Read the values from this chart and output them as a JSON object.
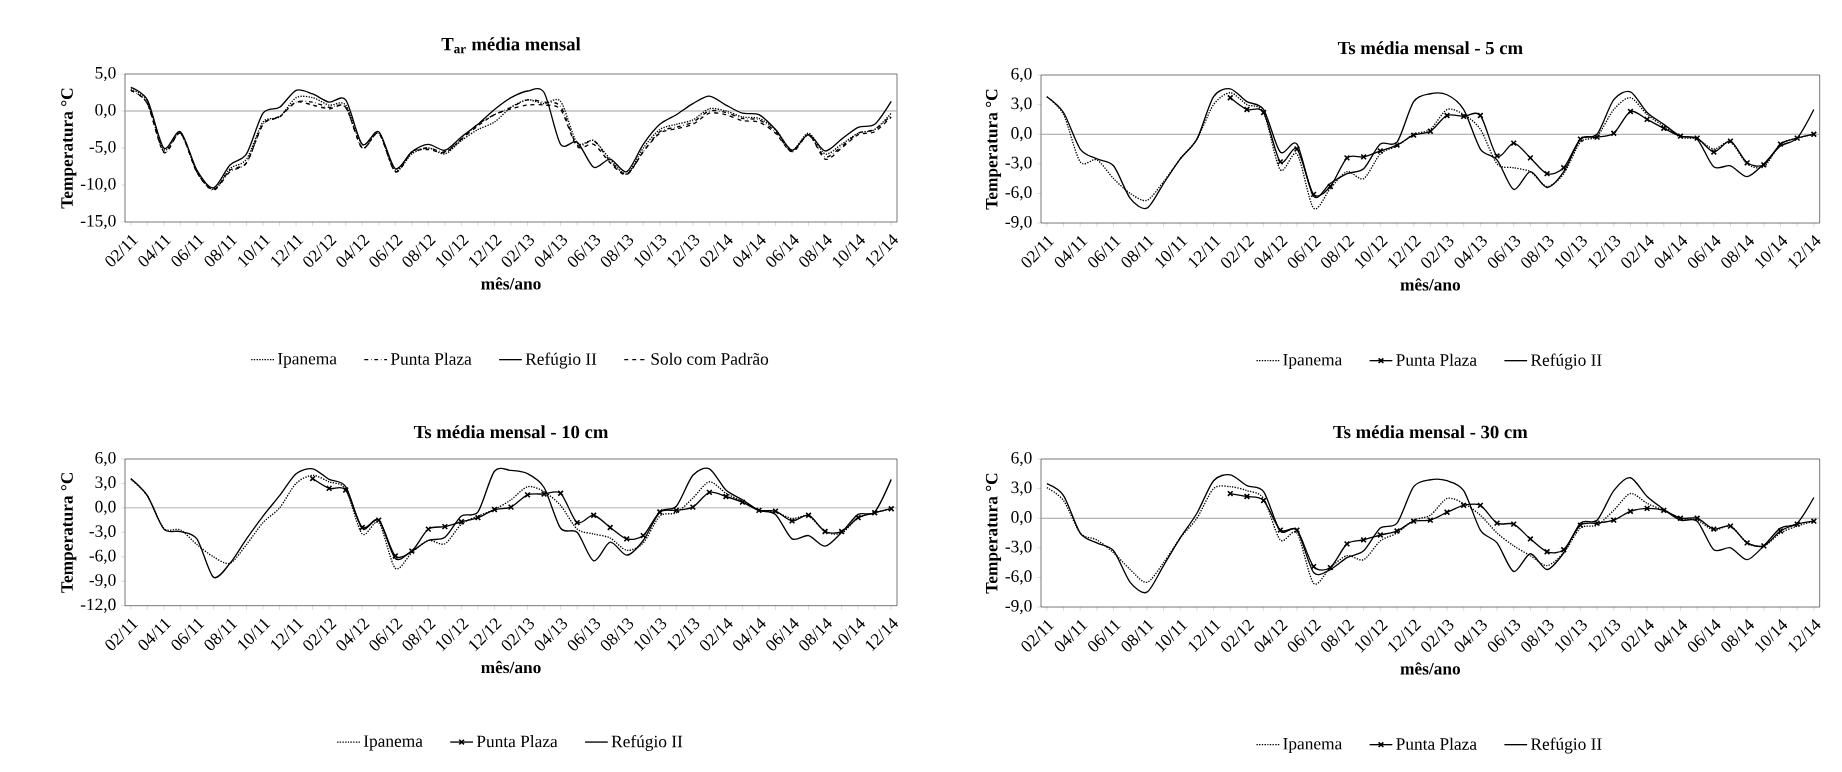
{
  "chart_data": [
    {
      "type": "line",
      "title": "T$_{ar}$ média mensal",
      "xlabel": "mês/ano",
      "ylabel": "Temperatura °C",
      "legend": "bottom",
      "categories": [
        "02/11",
        null,
        "04/11",
        null,
        "06/11",
        null,
        "08/11",
        null,
        "10/11",
        null,
        "12/11",
        null,
        "02/12",
        null,
        "04/12",
        null,
        "06/12",
        null,
        "08/12",
        null,
        "10/12",
        null,
        "12/12",
        null,
        "02/13",
        null,
        "04/13",
        null,
        "06/13",
        null,
        "08/13",
        null,
        "10/13",
        null,
        "12/13",
        null,
        "02/14",
        null,
        "04/14",
        null,
        "06/14",
        null,
        "08/14",
        null,
        "10/14",
        null,
        "12/14"
      ],
      "ylim": [
        -15,
        5
      ],
      "yticks": [
        {
          "value": -15,
          "label": "-15,0"
        },
        {
          "value": -10,
          "label": "-10,0"
        },
        {
          "value": -5,
          "label": "-5,0"
        },
        {
          "value": 0,
          "label": "0,0"
        },
        {
          "value": 5,
          "label": "5,0"
        }
      ],
      "ref_lines": [
        {
          "axis": "y",
          "value": 0,
          "color": "#a0a0a0"
        }
      ],
      "series": [
        {
          "name": "Ipanema",
          "color": "#000000",
          "line_style": "dotted",
          "values": [
            3.0,
            1.3,
            -5.2,
            -3.0,
            -8.2,
            -10.6,
            -7.8,
            -6.5,
            -1.5,
            -0.8,
            1.8,
            1.8,
            0.8,
            0.8,
            -4.5,
            -3.0,
            -8.0,
            -5.8,
            -5.0,
            -5.8,
            -4.0,
            -2.5,
            -1.5,
            0.5,
            1.5,
            1.0,
            1.3,
            -4.3,
            -4.0,
            -6.5,
            -8.5,
            -5.0,
            -2.5,
            -1.8,
            -1.2,
            0.3,
            0.0,
            -0.8,
            -1.0,
            -2.5,
            -5.3,
            -3.0,
            -5.8,
            -4.5,
            -3.0,
            -2.5,
            -0.3
          ]
        },
        {
          "name": "Punta Plaza",
          "color": "#000000",
          "line_style": "dashdot",
          "values": [
            2.8,
            1.0,
            -5.5,
            -3.0,
            -8.2,
            -10.7,
            -8.2,
            -7.0,
            -1.8,
            -0.7,
            1.2,
            1.2,
            0.5,
            0.5,
            -5.0,
            -3.0,
            -8.2,
            -5.5,
            -5.0,
            -5.5,
            -3.8,
            -1.8,
            -0.5,
            0.5,
            1.5,
            1.2,
            0.6,
            -4.6,
            -4.0,
            -6.8,
            -8.5,
            -5.5,
            -2.8,
            -2.2,
            -1.5,
            0.0,
            -0.2,
            -1.0,
            -1.2,
            -2.8,
            -5.5,
            -3.3,
            -6.2,
            -4.8,
            -3.0,
            -2.5,
            -0.6
          ]
        },
        {
          "name": "Refúgio II",
          "color": "#000000",
          "line_style": "solid",
          "values": [
            3.2,
            1.5,
            -5.0,
            -2.8,
            -8.0,
            -10.4,
            -7.3,
            -5.8,
            -0.3,
            0.5,
            2.8,
            2.3,
            1.2,
            1.5,
            -4.5,
            -2.8,
            -7.8,
            -5.5,
            -4.5,
            -5.3,
            -3.5,
            -1.8,
            0.2,
            1.8,
            2.7,
            2.5,
            -4.5,
            -4.2,
            -7.6,
            -6.5,
            -8.2,
            -4.5,
            -1.8,
            -0.5,
            1.0,
            2.0,
            0.8,
            -0.3,
            -0.5,
            -2.5,
            -5.3,
            -3.2,
            -5.4,
            -3.8,
            -2.2,
            -1.8,
            1.3
          ]
        },
        {
          "name": "Solo com Padrão",
          "color": "#000000",
          "line_style": "dashed",
          "values": [
            2.8,
            1.0,
            -5.6,
            -3.0,
            -8.3,
            -10.6,
            -8.0,
            -7.0,
            -1.8,
            -0.8,
            1.2,
            0.8,
            0.3,
            0.5,
            -5.0,
            -3.0,
            -8.2,
            -5.6,
            -5.2,
            -5.6,
            -3.8,
            -2.0,
            -0.5,
            0.3,
            0.8,
            0.8,
            0.2,
            -4.8,
            -4.5,
            -7.0,
            -8.6,
            -5.5,
            -3.0,
            -2.4,
            -1.8,
            -0.3,
            -0.5,
            -1.3,
            -1.5,
            -3.0,
            -5.5,
            -3.2,
            -6.5,
            -5.0,
            -3.2,
            -2.8,
            -0.8
          ]
        }
      ]
    },
    {
      "type": "line",
      "title": "Ts média mensal - 5 cm",
      "xlabel": "mês/ano",
      "ylabel": "Temperatura °C",
      "legend": "bottom",
      "categories": [
        "02/11",
        null,
        "04/11",
        null,
        "06/11",
        null,
        "08/11",
        null,
        "10/11",
        null,
        "12/11",
        null,
        "02/12",
        null,
        "04/12",
        null,
        "06/12",
        null,
        "08/12",
        null,
        "10/12",
        null,
        "12/12",
        null,
        "02/13",
        null,
        "04/13",
        null,
        "06/13",
        null,
        "08/13",
        null,
        "10/13",
        null,
        "12/13",
        null,
        "02/14",
        null,
        "04/14",
        null,
        "06/14",
        null,
        "08/14",
        null,
        "10/14",
        null,
        "12/14"
      ],
      "ylim": [
        -9,
        6
      ],
      "yticks": [
        {
          "value": -9,
          "label": "-9,0"
        },
        {
          "value": -6,
          "label": "-6,0"
        },
        {
          "value": -3,
          "label": "-3,0"
        },
        {
          "value": 0,
          "label": "0,0"
        },
        {
          "value": 3,
          "label": "3,0"
        },
        {
          "value": 6,
          "label": "6,0"
        }
      ],
      "ref_lines": [
        {
          "axis": "y",
          "value": 0,
          "color": "#a0a0a0"
        }
      ],
      "series": [
        {
          "name": "Ipanema",
          "color": "#000000",
          "line_style": "dotted",
          "values": [
            3.8,
            2.0,
            -2.8,
            -2.6,
            -4.5,
            -6.0,
            -6.7,
            -4.8,
            -2.5,
            -0.5,
            3.0,
            4.2,
            3.0,
            2.2,
            -3.6,
            -2.0,
            -7.5,
            -5.5,
            -3.8,
            -4.5,
            -2.0,
            -1.2,
            0.0,
            0.5,
            2.5,
            2.0,
            0.5,
            -3.0,
            -3.4,
            -3.8,
            -5.3,
            -4.0,
            -0.8,
            -0.2,
            2.5,
            3.7,
            2.0,
            0.8,
            -0.3,
            -0.5,
            -1.5,
            -0.8,
            -3.0,
            -3.3,
            -1.0,
            -0.4,
            0.0
          ]
        },
        {
          "name": "Punta Plaza",
          "color": "#000000",
          "line_style": "solid",
          "marker": "cross",
          "values": [
            null,
            null,
            null,
            null,
            null,
            null,
            null,
            null,
            null,
            null,
            null,
            3.7,
            2.5,
            2.2,
            -2.8,
            -1.5,
            -6.1,
            -5.3,
            -2.4,
            -2.3,
            -1.7,
            -1.1,
            -0.1,
            0.3,
            1.9,
            1.8,
            1.9,
            -2.2,
            -0.9,
            -2.4,
            -4.0,
            -3.4,
            -0.5,
            -0.3,
            0.1,
            2.3,
            1.5,
            0.6,
            -0.2,
            -0.4,
            -1.8,
            -0.7,
            -2.9,
            -3.1,
            -1.0,
            -0.4,
            0.0
          ]
        },
        {
          "name": "Refúgio II",
          "color": "#000000",
          "line_style": "solid",
          "values": [
            3.8,
            2.2,
            -1.5,
            -2.5,
            -3.2,
            -6.5,
            -7.5,
            -5.0,
            -2.5,
            -0.5,
            3.8,
            4.6,
            3.3,
            2.5,
            -1.8,
            -1.0,
            -6.3,
            -5.0,
            -4.0,
            -3.5,
            -1.0,
            -0.8,
            3.3,
            4.1,
            4.0,
            2.5,
            -1.5,
            -2.6,
            -5.6,
            -3.8,
            -5.4,
            -3.8,
            -0.5,
            0.0,
            3.5,
            4.3,
            2.2,
            1.0,
            -0.2,
            -0.5,
            -3.3,
            -3.2,
            -4.3,
            -3.0,
            -1.2,
            -0.4,
            2.5
          ]
        }
      ]
    },
    {
      "type": "line",
      "title": "Ts média mensal - 10 cm",
      "xlabel": "mês/ano",
      "ylabel": "Temperatura °C",
      "legend": "bottom",
      "categories": [
        "02/11",
        null,
        "04/11",
        null,
        "06/11",
        null,
        "08/11",
        null,
        "10/11",
        null,
        "12/11",
        null,
        "02/12",
        null,
        "04/12",
        null,
        "06/12",
        null,
        "08/12",
        null,
        "10/12",
        null,
        "12/12",
        null,
        "02/13",
        null,
        "04/13",
        null,
        "06/13",
        null,
        "08/13",
        null,
        "10/13",
        null,
        "12/13",
        null,
        "02/14",
        null,
        "04/14",
        null,
        "06/14",
        null,
        "08/14",
        null,
        "10/14",
        null,
        "12/14"
      ],
      "ylim": [
        -12,
        6
      ],
      "yticks": [
        {
          "value": -12,
          "label": "-12,0"
        },
        {
          "value": -9,
          "label": "-9,0"
        },
        {
          "value": -6,
          "label": "-6,0"
        },
        {
          "value": -3,
          "label": "-3,0"
        },
        {
          "value": 0,
          "label": "0,0"
        },
        {
          "value": 3,
          "label": "3,0"
        },
        {
          "value": 6,
          "label": "6,0"
        }
      ],
      "ref_lines": [
        {
          "axis": "y",
          "value": 0,
          "color": "#a0a0a0"
        }
      ],
      "series": [
        {
          "name": "Ipanema",
          "color": "#000000",
          "line_style": "dotted",
          "values": [
            3.5,
            1.5,
            -2.5,
            -2.7,
            -4.5,
            -6.0,
            -6.8,
            -4.5,
            -1.8,
            0.0,
            3.0,
            4.0,
            3.2,
            2.3,
            -3.2,
            -1.8,
            -7.4,
            -5.5,
            -4.0,
            -4.4,
            -2.0,
            -1.0,
            -0.2,
            1.0,
            2.6,
            2.0,
            0.3,
            -2.6,
            -3.2,
            -3.7,
            -5.2,
            -4.3,
            -1.0,
            -0.6,
            1.2,
            3.2,
            1.8,
            0.8,
            -0.3,
            -0.5,
            -1.3,
            -1.0,
            -2.9,
            -3.1,
            -1.2,
            -0.6,
            -0.1
          ]
        },
        {
          "name": "Punta Plaza",
          "color": "#000000",
          "line_style": "solid",
          "marker": "cross",
          "values": [
            null,
            null,
            null,
            null,
            null,
            null,
            null,
            null,
            null,
            null,
            null,
            3.6,
            2.4,
            2.2,
            -2.4,
            -1.5,
            -5.9,
            -5.3,
            -2.6,
            -2.3,
            -1.7,
            -1.2,
            -0.2,
            0.1,
            1.6,
            1.7,
            1.8,
            -1.8,
            -0.9,
            -2.4,
            -3.8,
            -3.4,
            -0.5,
            -0.3,
            0.1,
            1.9,
            1.4,
            0.7,
            -0.3,
            -0.4,
            -1.6,
            -0.9,
            -2.9,
            -2.9,
            -1.2,
            -0.6,
            -0.1
          ]
        },
        {
          "name": "Refúgio II",
          "color": "#000000",
          "line_style": "solid",
          "values": [
            3.6,
            1.5,
            -2.6,
            -2.9,
            -3.8,
            -8.5,
            -6.8,
            -3.8,
            -1.0,
            1.5,
            4.2,
            4.8,
            3.5,
            2.6,
            -2.5,
            -1.5,
            -6.2,
            -5.3,
            -4.0,
            -3.6,
            -1.0,
            -0.5,
            4.5,
            4.6,
            4.2,
            2.5,
            -2.5,
            -3.0,
            -6.5,
            -4.2,
            -5.8,
            -4.0,
            -0.5,
            0.2,
            4.0,
            4.8,
            2.2,
            1.0,
            -0.3,
            -0.8,
            -3.8,
            -3.4,
            -4.7,
            -3.0,
            -0.8,
            -0.5,
            3.5
          ]
        }
      ]
    },
    {
      "type": "line",
      "title": "Ts média mensal - 30 cm",
      "xlabel": "mês/ano",
      "ylabel": "Temperatura °C",
      "legend": "bottom",
      "categories": [
        "02/11",
        null,
        "04/11",
        null,
        "06/11",
        null,
        "08/11",
        null,
        "10/11",
        null,
        "12/11",
        null,
        "02/12",
        null,
        "04/12",
        null,
        "06/12",
        null,
        "08/12",
        null,
        "10/12",
        null,
        "12/12",
        null,
        "02/13",
        null,
        "04/13",
        null,
        "06/13",
        null,
        "08/13",
        null,
        "10/13",
        null,
        "12/13",
        null,
        "02/14",
        null,
        "04/14",
        null,
        "06/14",
        null,
        "08/14",
        null,
        "10/14",
        null,
        "12/14"
      ],
      "ylim": [
        -9,
        6
      ],
      "yticks": [
        {
          "value": -9,
          "label": "-9,0"
        },
        {
          "value": -6,
          "label": "-6,0"
        },
        {
          "value": -3,
          "label": "-3,0"
        },
        {
          "value": 0,
          "label": "0,0"
        },
        {
          "value": 3,
          "label": "3,0"
        },
        {
          "value": 6,
          "label": "6,0"
        }
      ],
      "ref_lines": [
        {
          "axis": "y",
          "value": 0,
          "color": "#a0a0a0"
        }
      ],
      "series": [
        {
          "name": "Ipanema",
          "color": "#000000",
          "line_style": "dotted",
          "values": [
            3.1,
            1.8,
            -1.5,
            -2.2,
            -3.5,
            -5.2,
            -6.5,
            -4.5,
            -2.0,
            0.0,
            3.0,
            3.2,
            2.8,
            2.0,
            -2.2,
            -1.5,
            -6.6,
            -5.0,
            -3.8,
            -4.2,
            -2.3,
            -1.5,
            -0.2,
            0.3,
            2.0,
            1.5,
            0.3,
            -1.5,
            -2.8,
            -3.8,
            -4.8,
            -3.5,
            -1.0,
            -0.7,
            0.8,
            2.5,
            1.5,
            0.8,
            0.0,
            -0.2,
            -1.2,
            -0.8,
            -2.5,
            -2.8,
            -1.5,
            -0.8,
            -0.3
          ]
        },
        {
          "name": "Punta Plaza",
          "color": "#000000",
          "line_style": "solid",
          "marker": "cross",
          "values": [
            null,
            null,
            null,
            null,
            null,
            null,
            null,
            null,
            null,
            null,
            null,
            2.5,
            2.2,
            1.8,
            -1.2,
            -1.2,
            -4.9,
            -5.0,
            -2.6,
            -2.2,
            -1.7,
            -1.3,
            -0.3,
            -0.2,
            0.6,
            1.3,
            1.3,
            -0.5,
            -0.6,
            -2.1,
            -3.4,
            -3.2,
            -0.7,
            -0.5,
            -0.2,
            0.7,
            1.0,
            0.8,
            0.0,
            0.0,
            -1.1,
            -0.8,
            -2.5,
            -2.8,
            -1.3,
            -0.6,
            -0.3
          ]
        },
        {
          "name": "Refúgio II",
          "color": "#000000",
          "line_style": "solid",
          "values": [
            3.5,
            2.3,
            -1.5,
            -2.5,
            -3.3,
            -6.5,
            -7.5,
            -4.8,
            -2.0,
            0.5,
            3.8,
            4.4,
            3.3,
            2.7,
            -1.3,
            -1.2,
            -5.5,
            -5.2,
            -4.0,
            -3.3,
            -1.0,
            -0.5,
            3.2,
            3.9,
            3.8,
            2.8,
            -1.2,
            -2.5,
            -5.4,
            -3.6,
            -5.2,
            -3.5,
            -0.5,
            -0.2,
            2.8,
            4.1,
            2.2,
            0.9,
            -0.2,
            -0.3,
            -3.2,
            -3.0,
            -4.2,
            -2.8,
            -1.0,
            -0.5,
            2.1
          ]
        }
      ]
    }
  ]
}
